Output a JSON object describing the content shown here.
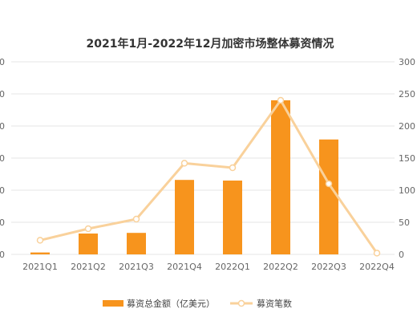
{
  "chart_data": {
    "type": "bar",
    "title": "2021年1月-2022年12月加密市场整体募资情况",
    "categories": [
      "2021Q1",
      "2021Q2",
      "2021Q3",
      "2021Q4",
      "2022Q1",
      "2022Q2",
      "2022Q3",
      "2022Q4"
    ],
    "series": [
      {
        "name": "募资总金额（亿美元）",
        "type": "bar",
        "axis": "left",
        "values": [
          6,
          65,
          67,
          232,
          230,
          480,
          358,
          0
        ]
      },
      {
        "name": "募资笔数",
        "type": "line",
        "axis": "right",
        "values": [
          22,
          40,
          55,
          142,
          135,
          240,
          110,
          2
        ]
      }
    ],
    "y_left": {
      "ticks": [
        "0",
        "0",
        "0",
        "0",
        "0",
        "0",
        "0"
      ]
    },
    "y_right": {
      "min": 0,
      "max": 300,
      "ticks": [
        "0",
        "50",
        "100",
        "150",
        "200",
        "250",
        "300"
      ]
    },
    "grid": true,
    "legend": "bottom",
    "colors": {
      "bar": "#f7941d",
      "line": "#f9d19b",
      "grid": "#e6e6e6"
    }
  }
}
